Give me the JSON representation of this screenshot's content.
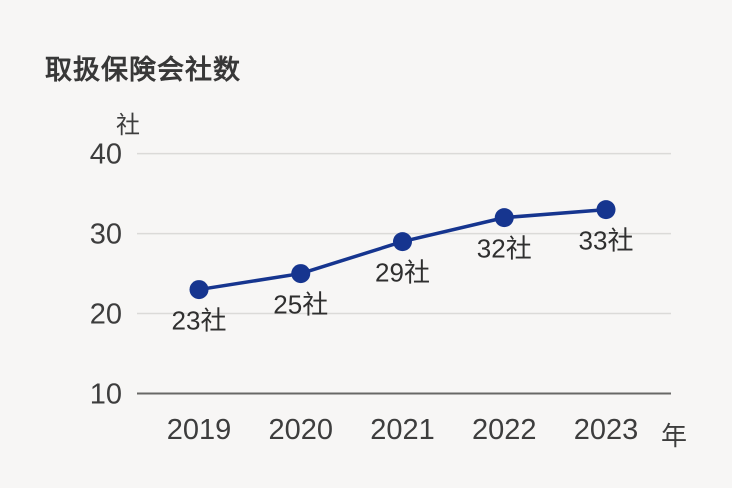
{
  "page": {
    "background_color": "#f7f6f5"
  },
  "chart": {
    "title": "取扱保険会社数"
  },
  "chart_data": {
    "type": "line",
    "title": "取扱保険会社数",
    "xlabel": "年",
    "ylabel": "社",
    "categories": [
      "2019",
      "2020",
      "2021",
      "2022",
      "2023"
    ],
    "series": [
      {
        "name": "取扱保険会社数",
        "values": [
          23,
          25,
          29,
          32,
          33
        ]
      }
    ],
    "point_labels": [
      "23社",
      "25社",
      "29社",
      "32社",
      "33社"
    ],
    "y_ticks": [
      40,
      30,
      20,
      10
    ],
    "ylim": [
      10,
      42
    ],
    "grid": true,
    "legend": "none",
    "line_color": "#16358f",
    "marker_color": "#16358f",
    "gridline_color": "#dbdad8",
    "baseline_color": "#686866",
    "text_color": "#3d3d3d"
  }
}
